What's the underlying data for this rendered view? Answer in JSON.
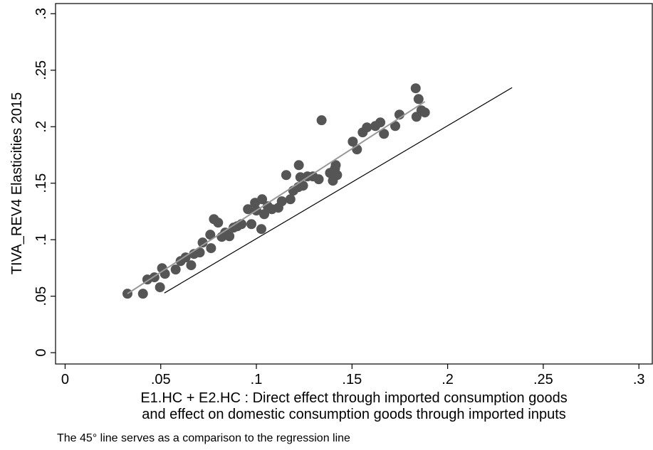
{
  "chart_data": {
    "type": "scatter",
    "y_label": "TIVA_REV4 Elasticities 2015",
    "x_label": [
      "E1.HC + E2.HC : Direct effect through imported consumption goods",
      "and effect on domestic consumption goods through imported inputs"
    ],
    "note": "The 45° line serves as a comparison to the regression line",
    "xlim": [
      -0.005,
      0.307
    ],
    "ylim": [
      -0.01,
      0.309
    ],
    "xticks": [
      0,
      {
        "value": 0.05,
        "label": ".05"
      },
      {
        "value": 0.1,
        "label": ".1"
      },
      {
        "value": 0.15,
        "label": ".15"
      },
      {
        "value": 0.2,
        "label": ".2"
      },
      {
        "value": 0.25,
        "label": ".25"
      },
      {
        "value": 0.3,
        "label": ".3"
      }
    ],
    "yticks": [
      0,
      {
        "value": 0.05,
        "label": ".05"
      },
      {
        "value": 0.1,
        "label": ".1"
      },
      {
        "value": 0.15,
        "label": ".15"
      },
      {
        "value": 0.2,
        "label": ".2"
      },
      {
        "value": 0.25,
        "label": ".25"
      },
      {
        "value": 0.3,
        "label": ".3"
      }
    ],
    "series": [
      {
        "color": "#555555",
        "x": [
          0.0326,
          0.0407,
          0.043,
          0.0467,
          0.0496,
          0.0507,
          0.0522,
          0.0578,
          0.0604,
          0.063,
          0.0659,
          0.0674,
          0.0704,
          0.0719,
          0.0759,
          0.0763,
          0.0778,
          0.08,
          0.0819,
          0.0837,
          0.0859,
          0.0881,
          0.09,
          0.0922,
          0.0956,
          0.0974,
          0.0993,
          0.1,
          0.103,
          0.1026,
          0.1041,
          0.1059,
          0.1081,
          0.1115,
          0.1133,
          0.1156,
          0.1178,
          0.1193,
          0.1219,
          0.1222,
          0.123,
          0.1244,
          0.1267,
          0.1296,
          0.1326,
          0.1341,
          0.1385,
          0.14,
          0.1411,
          0.1415,
          0.1422,
          0.1504,
          0.1526,
          0.1556,
          0.1578,
          0.1622,
          0.1648,
          0.1667,
          0.1726,
          0.1748,
          0.1833,
          0.1837,
          0.1848,
          0.1863,
          0.1881
        ],
        "values": [
          0.0522,
          0.0522,
          0.0648,
          0.0667,
          0.0579,
          0.0748,
          0.0698,
          0.0736,
          0.0811,
          0.0843,
          0.0774,
          0.0874,
          0.0887,
          0.0975,
          0.1044,
          0.0925,
          0.1182,
          0.1151,
          0.1025,
          0.1063,
          0.1031,
          0.1107,
          0.1119,
          0.1138,
          0.127,
          0.1138,
          0.1327,
          0.1258,
          0.1358,
          0.1094,
          0.1226,
          0.1296,
          0.127,
          0.1283,
          0.134,
          0.1572,
          0.1358,
          0.1434,
          0.1465,
          0.166,
          0.1553,
          0.1478,
          0.156,
          0.156,
          0.1535,
          0.2057,
          0.1591,
          0.1522,
          0.1629,
          0.166,
          0.1572,
          0.1868,
          0.1799,
          0.195,
          0.1994,
          0.2006,
          0.2038,
          0.1937,
          0.2006,
          0.2107,
          0.234,
          0.2088,
          0.2245,
          0.2145,
          0.2126
        ]
      }
    ],
    "lines": [
      {
        "color": "#999999",
        "x": [
          0.0326,
          0.1881
        ],
        "y": [
          0.0522,
          0.2222
        ]
      },
      {
        "color": "#000000",
        "x": [
          0.0519,
          0.2337
        ],
        "y": [
          0.0528,
          0.2346
        ]
      }
    ]
  }
}
